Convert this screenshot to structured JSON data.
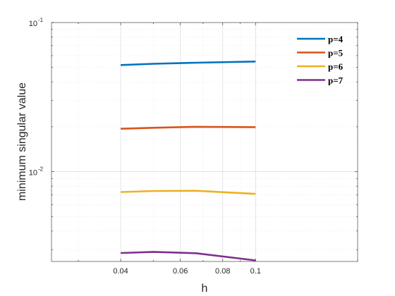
{
  "chart_data": {
    "type": "line",
    "xlabel": "h",
    "ylabel": "minimum singular value",
    "x_scale": "log",
    "y_scale": "log",
    "xlim": [
      0.025,
      0.2
    ],
    "ylim": [
      0.0025,
      0.1
    ],
    "grid": true,
    "minor_grid": true,
    "legend_position": "top-right",
    "x_ticks": [
      {
        "value": 0.04,
        "label": "0.04"
      },
      {
        "value": 0.06,
        "label": "0.06"
      },
      {
        "value": 0.08,
        "label": "0.08"
      },
      {
        "value": 0.1,
        "label": "0.1"
      }
    ],
    "y_ticks": [
      {
        "value": 0.01,
        "base": "10",
        "exp": "-2"
      },
      {
        "value": 0.1,
        "base": "10",
        "exp": "-1"
      }
    ],
    "series": [
      {
        "name": "p=4",
        "color": "#0072BD",
        "x": [
          0.04,
          0.05,
          0.0667,
          0.1
        ],
        "y": [
          0.0519,
          0.0529,
          0.0538,
          0.0548
        ]
      },
      {
        "name": "p=5",
        "color": "#D95319",
        "x": [
          0.04,
          0.05,
          0.0667,
          0.1
        ],
        "y": [
          0.0194,
          0.0197,
          0.02,
          0.0199
        ]
      },
      {
        "name": "p=6",
        "color": "#EDB120",
        "x": [
          0.04,
          0.05,
          0.0667,
          0.1
        ],
        "y": [
          0.0073,
          0.00742,
          0.00745,
          0.0071
        ]
      },
      {
        "name": "p=7",
        "color": "#7E2F8E",
        "x": [
          0.04,
          0.05,
          0.0667,
          0.1
        ],
        "y": [
          0.00285,
          0.0029,
          0.00284,
          0.00254
        ]
      }
    ]
  }
}
